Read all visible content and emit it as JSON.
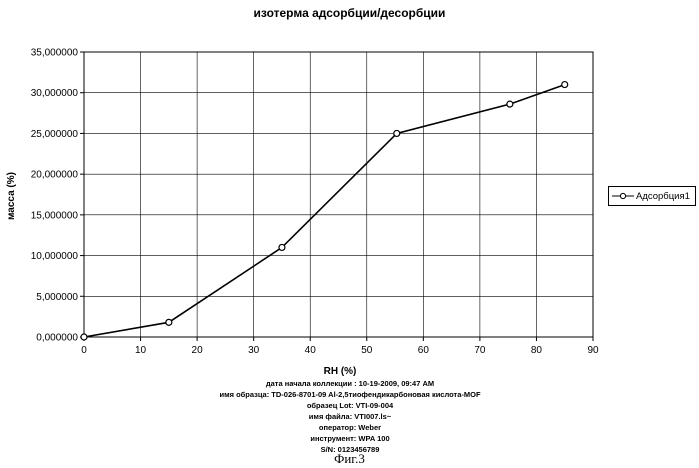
{
  "chart_data": {
    "type": "line",
    "title": "изотерма адсорбции/десорбции",
    "xlabel": "RH (%)",
    "ylabel": "масса (%)",
    "xlim": [
      0,
      90
    ],
    "ylim": [
      0,
      35
    ],
    "x_ticks": [
      "0",
      "10",
      "20",
      "30",
      "40",
      "50",
      "60",
      "70",
      "80",
      "90"
    ],
    "y_ticks": [
      "0,000000",
      "5,000000",
      "10,000000",
      "15,000000",
      "20,000000",
      "25,000000",
      "30,000000",
      "35,000000"
    ],
    "grid": true,
    "legend_position": "right",
    "series": [
      {
        "name": "Адсорбция1",
        "color": "#000000",
        "x": [
          0,
          15,
          35,
          55.3,
          75.3,
          85
        ],
        "y": [
          0.0,
          1.8,
          11.0,
          25.0,
          28.6,
          31.0
        ]
      }
    ]
  },
  "caption": {
    "lines": [
      "дата начала коллекции : 10-19-2009, 09:47 AM",
      "имя образца: TD-026-8701-09 Al-2,5тиофендикарбоновая кислота-MOF",
      "образец Lot: VTI-09-004",
      "имя файла: VTI007.ls~",
      "оператор: Weber",
      "инструмент: WPA 100",
      "S/N: 0123456789"
    ]
  },
  "figure_label": "Фиг.3"
}
